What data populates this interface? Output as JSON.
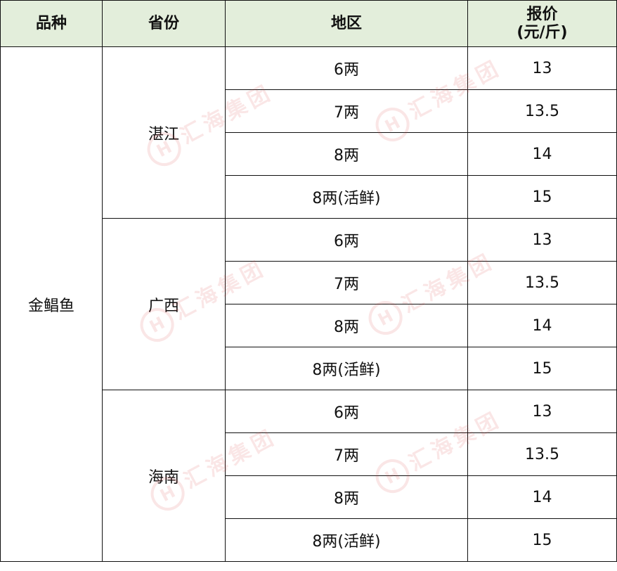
{
  "header": {
    "variety": "品种",
    "province": "省份",
    "region": "地区",
    "price": "报价",
    "price_unit": "(元/斤)"
  },
  "variety": "金鲳鱼",
  "groups": [
    {
      "province": "湛江",
      "rows": [
        {
          "region": "6两",
          "price": "13"
        },
        {
          "region": "7两",
          "price": "13.5"
        },
        {
          "region": "8两",
          "price": "14"
        },
        {
          "region": "8两(活鲜)",
          "price": "15"
        }
      ]
    },
    {
      "province": "广西",
      "rows": [
        {
          "region": "6两",
          "price": "13"
        },
        {
          "region": "7两",
          "price": "13.5"
        },
        {
          "region": "8两",
          "price": "14"
        },
        {
          "region": "8两(活鲜)",
          "price": "15"
        }
      ]
    },
    {
      "province": "海南",
      "rows": [
        {
          "region": "6两",
          "price": "13"
        },
        {
          "region": "7两",
          "price": "13.5"
        },
        {
          "region": "8两",
          "price": "14"
        },
        {
          "region": "8两(活鲜)",
          "price": "15"
        }
      ]
    }
  ],
  "watermark": "汇海集团",
  "watermark_logo": "H",
  "colors": {
    "header_bg": "#e3eedb",
    "watermark": "#dc3c3c"
  }
}
